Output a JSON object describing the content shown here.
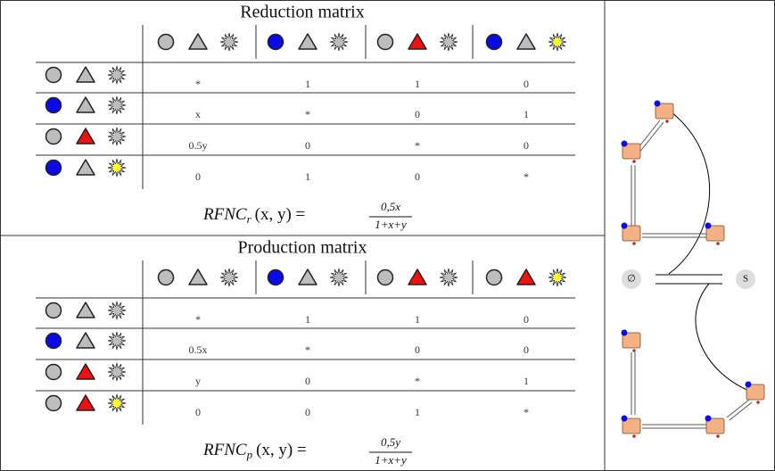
{
  "reduction": {
    "title": "Reduction matrix",
    "cells": [
      [
        "*",
        "1",
        "1",
        "0"
      ],
      [
        "x",
        "*",
        "0",
        "1"
      ],
      [
        "0.5y",
        "0",
        "*",
        "0"
      ],
      [
        "0",
        "1",
        "0",
        "*"
      ]
    ],
    "formula": {
      "name": "RFNC",
      "sub": "r",
      "args": "(x, y) =",
      "numerator": "0,5x",
      "denominator": "1+x+y"
    }
  },
  "production": {
    "title": "Production matrix",
    "cells": [
      [
        "*",
        "1",
        "1",
        "0"
      ],
      [
        "0.5x",
        "*",
        "0",
        "0"
      ],
      [
        "y",
        "0",
        "*",
        "1"
      ],
      [
        "0",
        "0",
        "1",
        "*"
      ]
    ],
    "formula": {
      "name": "RFNC",
      "sub": "p",
      "args": "(x, y) =",
      "numerator": "0,5y",
      "denominator": "1+x+y"
    }
  },
  "diagram": {
    "left_label": "∅",
    "right_label": "S"
  }
}
